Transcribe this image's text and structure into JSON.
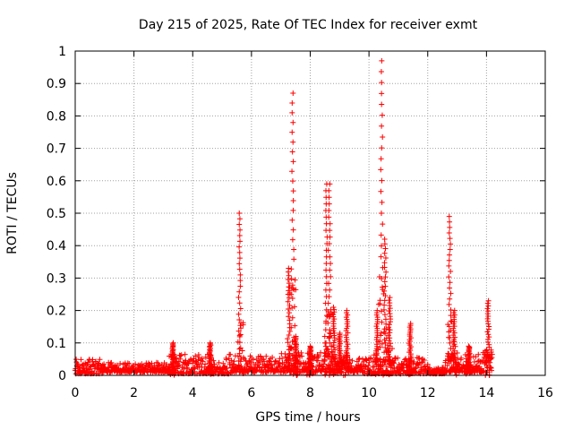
{
  "chart_data": {
    "type": "scatter",
    "title": "Day 215 of 2025, Rate Of TEC Index for receiver exmt",
    "xlabel": "GPS time / hours",
    "ylabel": "ROTI / TECUs",
    "xlim": [
      0,
      16
    ],
    "ylim": [
      0,
      1
    ],
    "xticks": [
      "0",
      "2",
      "4",
      "6",
      "8",
      "10",
      "12",
      "14",
      "16"
    ],
    "yticks": [
      "0",
      "0.1",
      "0.2",
      "0.3",
      "0.4",
      "0.5",
      "0.6",
      "0.7",
      "0.8",
      "0.9",
      "1"
    ],
    "grid": true,
    "marker": "+",
    "series_color": "#ff0000",
    "series": [
      {
        "name": "ROTI",
        "baseline_segments": [
          {
            "x0": 0.0,
            "x1": 1.0,
            "base": 0.005,
            "amp": 0.045
          },
          {
            "x0": 1.0,
            "x1": 3.2,
            "base": 0.01,
            "amp": 0.03
          },
          {
            "x0": 3.2,
            "x1": 5.3,
            "base": 0.005,
            "amp": 0.06
          },
          {
            "x0": 5.3,
            "x1": 7.0,
            "base": 0.01,
            "amp": 0.05
          },
          {
            "x0": 7.0,
            "x1": 9.8,
            "base": 0.01,
            "amp": 0.06
          },
          {
            "x0": 9.8,
            "x1": 12.0,
            "base": 0.005,
            "amp": 0.05
          },
          {
            "x0": 12.0,
            "x1": 12.6,
            "base": 0.005,
            "amp": 0.02
          },
          {
            "x0": 12.6,
            "x1": 14.2,
            "base": 0.01,
            "amp": 0.06
          }
        ],
        "spikes": [
          {
            "x": 3.32,
            "y": 0.1
          },
          {
            "x": 4.6,
            "y": 0.1
          },
          {
            "x": 5.6,
            "y": 0.5
          },
          {
            "x": 7.27,
            "y": 0.33
          },
          {
            "x": 7.4,
            "y": 0.87
          },
          {
            "x": 7.5,
            "y": 0.12
          },
          {
            "x": 8.0,
            "y": 0.09
          },
          {
            "x": 8.55,
            "y": 0.59
          },
          {
            "x": 8.65,
            "y": 0.59
          },
          {
            "x": 8.8,
            "y": 0.21
          },
          {
            "x": 9.0,
            "y": 0.13
          },
          {
            "x": 9.25,
            "y": 0.2
          },
          {
            "x": 10.28,
            "y": 0.2
          },
          {
            "x": 10.43,
            "y": 0.97
          },
          {
            "x": 10.55,
            "y": 0.42
          },
          {
            "x": 10.7,
            "y": 0.24
          },
          {
            "x": 11.4,
            "y": 0.16
          },
          {
            "x": 12.75,
            "y": 0.49
          },
          {
            "x": 12.9,
            "y": 0.2
          },
          {
            "x": 13.4,
            "y": 0.09
          },
          {
            "x": 14.05,
            "y": 0.23
          }
        ]
      }
    ]
  }
}
